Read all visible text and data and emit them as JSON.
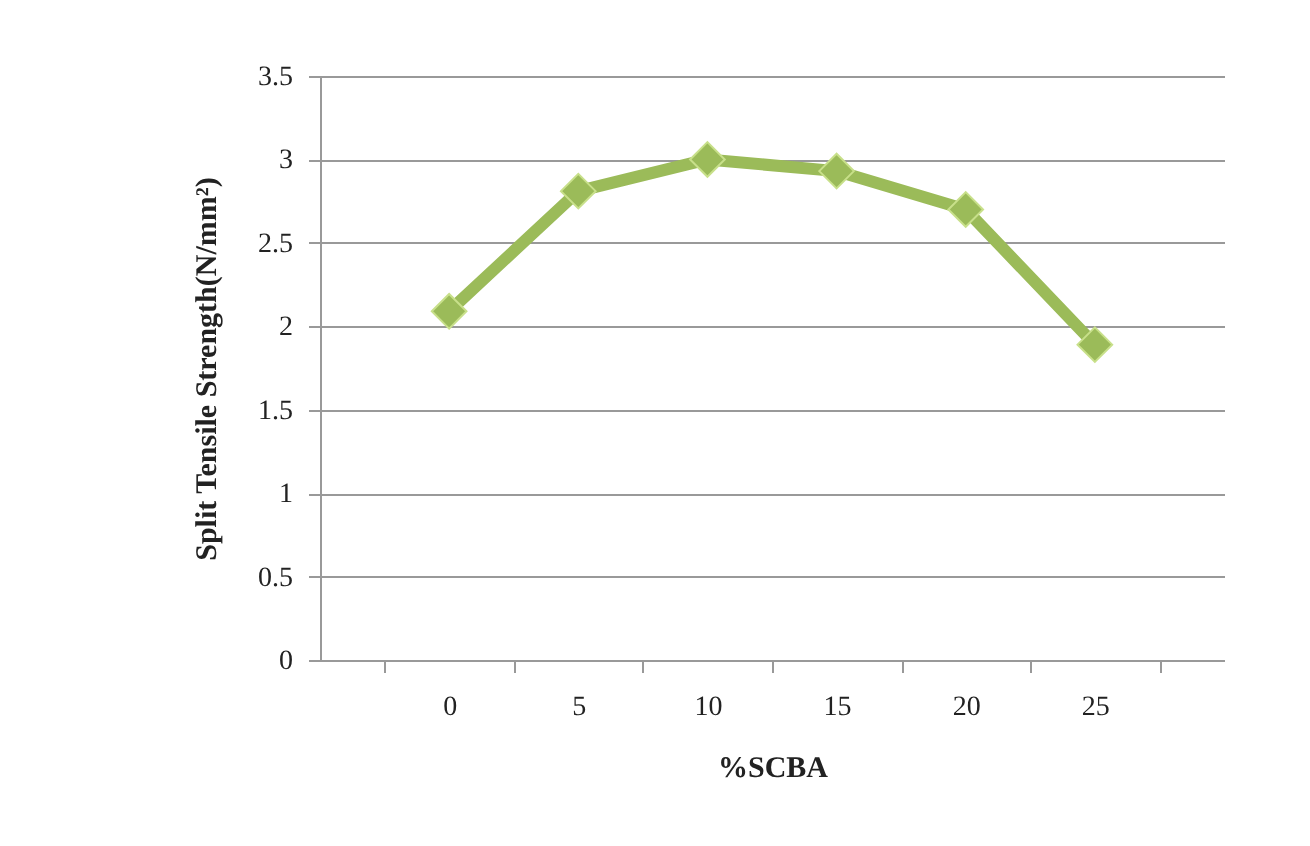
{
  "chart_data": {
    "type": "line",
    "xlabel": "%SCBA",
    "ylabel": "Split Tensile Strength(N/mm²)",
    "categories": [
      "0",
      "5",
      "10",
      "15",
      "20",
      "25"
    ],
    "series": [
      {
        "color": "#9bbb59",
        "values": [
          2.09,
          2.81,
          3.0,
          2.93,
          2.7,
          1.89
        ]
      }
    ],
    "ylim": [
      0,
      3.5
    ],
    "yticks": [
      0,
      0.5,
      1,
      1.5,
      2,
      2.5,
      3,
      3.5
    ],
    "grid": "y",
    "marker": "diamond",
    "line_style": "solid"
  }
}
